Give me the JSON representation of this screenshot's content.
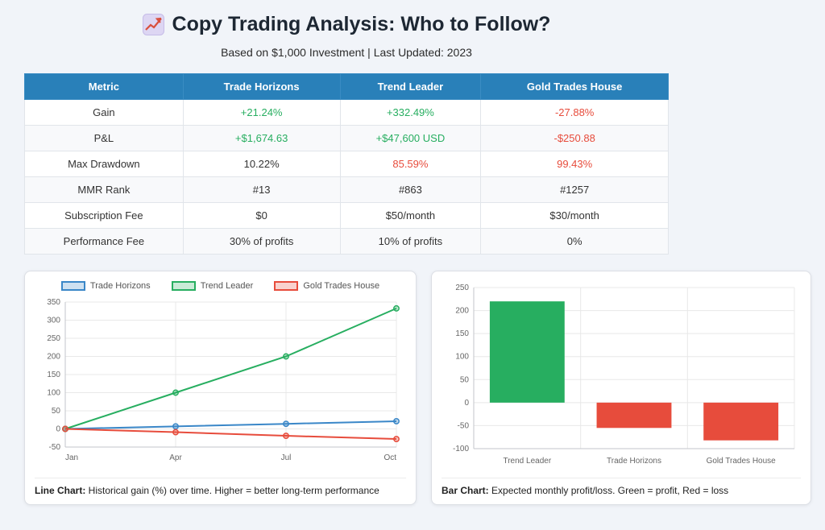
{
  "page": {
    "title": "Copy Trading Analysis: Who to Follow?",
    "title_icon": "chart-increasing-emoji",
    "subtitle": "Based on $1,000 Investment | Last Updated: 2023"
  },
  "colors": {
    "header_blue": "#2980b9",
    "positive_green": "#27ae60",
    "negative_red": "#e74c3c",
    "line_blue": "#3a87c8"
  },
  "table": {
    "headers": [
      "Metric",
      "Trade Horizons",
      "Trend Leader",
      "Gold Trades House"
    ],
    "rows": [
      {
        "metric": "Gain",
        "values": [
          {
            "text": "+21.24%",
            "color": "#27ae60"
          },
          {
            "text": "+332.49%",
            "color": "#27ae60"
          },
          {
            "text": "-27.88%",
            "color": "#e74c3c"
          }
        ]
      },
      {
        "metric": "P&L",
        "values": [
          {
            "text": "+$1,674.63",
            "color": "#27ae60"
          },
          {
            "text": "+$47,600 USD",
            "color": "#27ae60"
          },
          {
            "text": "-$250.88",
            "color": "#e74c3c"
          }
        ]
      },
      {
        "metric": "Max Drawdown",
        "values": [
          {
            "text": "10.22%"
          },
          {
            "text": "85.59%",
            "color": "#e74c3c"
          },
          {
            "text": "99.43%",
            "color": "#e74c3c"
          }
        ]
      },
      {
        "metric": "MMR Rank",
        "values": [
          {
            "text": "#13"
          },
          {
            "text": "#863"
          },
          {
            "text": "#1257"
          }
        ]
      },
      {
        "metric": "Subscription Fee",
        "values": [
          {
            "text": "$0"
          },
          {
            "text": "$50/month"
          },
          {
            "text": "$30/month"
          }
        ]
      },
      {
        "metric": "Performance Fee",
        "values": [
          {
            "text": "30% of profits"
          },
          {
            "text": "10% of profits"
          },
          {
            "text": "0%"
          }
        ]
      }
    ]
  },
  "chart_data": [
    {
      "type": "line",
      "x": [
        "Jan",
        "Apr",
        "Jul",
        "Oct"
      ],
      "series": [
        {
          "name": "Trade Horizons",
          "values": [
            0,
            7,
            14,
            21.24
          ],
          "color": "#3a87c8"
        },
        {
          "name": "Trend Leader",
          "values": [
            0,
            100,
            200,
            332.49
          ],
          "color": "#27ae60"
        },
        {
          "name": "Gold Trades House",
          "values": [
            0,
            -9,
            -19,
            -27.88
          ],
          "color": "#e74c3c"
        }
      ],
      "ylim": [
        -50,
        350
      ],
      "ytick": 50,
      "grid": true,
      "legend_position": "top",
      "caption_bold": "Line Chart:",
      "caption_rest": " Historical gain (%) over time. Higher = better long-term performance"
    },
    {
      "type": "bar",
      "categories": [
        "Trend Leader",
        "Trade Horizons",
        "Gold Trades House"
      ],
      "values": [
        220,
        -55,
        -82
      ],
      "colors": [
        "#27ae60",
        "#e74c3c",
        "#e74c3c"
      ],
      "ylim": [
        -100,
        250
      ],
      "ytick": 50,
      "grid": true,
      "legend_position": "none",
      "caption_bold": "Bar Chart:",
      "caption_rest": " Expected monthly profit/loss. Green = profit, Red = loss"
    }
  ]
}
